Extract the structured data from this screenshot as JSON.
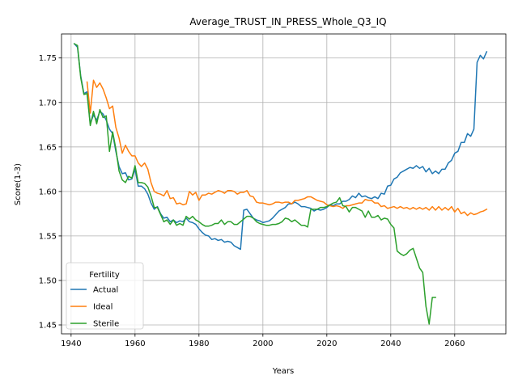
{
  "chart_data": {
    "type": "line",
    "title": "Average_TRUST_IN_PRESS_Whole_Q3_IQ",
    "xlabel": "Years",
    "ylabel": "Score(1-3)",
    "xlim": [
      1937,
      2076
    ],
    "ylim": [
      1.44,
      1.777
    ],
    "xticks": [
      1940,
      1960,
      1980,
      2000,
      2020,
      2040,
      2060
    ],
    "yticks": [
      1.45,
      1.5,
      1.55,
      1.6,
      1.65,
      1.7,
      1.75
    ],
    "grid": true,
    "legend": {
      "title": "Fertility",
      "placement": "lower-left"
    },
    "series": [
      {
        "name": "Actual",
        "color": "#1f77b4",
        "x": [
          1941,
          1942,
          1943,
          1944,
          1945,
          1946,
          1947,
          1948,
          1949,
          1950,
          1951,
          1952,
          1953,
          1954,
          1955,
          1956,
          1957,
          1958,
          1959,
          1960,
          1961,
          1962,
          1963,
          1964,
          1965,
          1966,
          1967,
          1968,
          1969,
          1970,
          1971,
          1972,
          1973,
          1974,
          1975,
          1976,
          1977,
          1978,
          1979,
          1980,
          1981,
          1982,
          1983,
          1984,
          1985,
          1986,
          1987,
          1988,
          1989,
          1990,
          1991,
          1992,
          1993,
          1994,
          1995,
          1996,
          1997,
          1998,
          1999,
          2000,
          2001,
          2002,
          2003,
          2004,
          2005,
          2006,
          2007,
          2008,
          2009,
          2010,
          2011,
          2012,
          2013,
          2014,
          2015,
          2016,
          2017,
          2018,
          2019,
          2020,
          2021,
          2022,
          2023,
          2024,
          2025,
          2026,
          2027,
          2028,
          2029,
          2030,
          2031,
          2032,
          2033,
          2034,
          2035,
          2036,
          2037,
          2038,
          2039,
          2040,
          2041,
          2042,
          2043,
          2044,
          2045,
          2046,
          2047,
          2048,
          2049,
          2050,
          2051,
          2052,
          2053,
          2054,
          2055,
          2056,
          2057,
          2058,
          2059,
          2060,
          2061,
          2062,
          2063,
          2064,
          2065,
          2066,
          2067,
          2068,
          2069,
          2070
        ],
        "values": [
          1.766,
          1.762,
          1.73,
          1.71,
          1.712,
          1.676,
          1.686,
          1.68,
          1.69,
          1.687,
          1.68,
          1.67,
          1.665,
          1.645,
          1.628,
          1.62,
          1.621,
          1.613,
          1.614,
          1.625,
          1.606,
          1.606,
          1.603,
          1.597,
          1.587,
          1.58,
          1.583,
          1.575,
          1.57,
          1.571,
          1.566,
          1.568,
          1.565,
          1.567,
          1.566,
          1.57,
          1.566,
          1.565,
          1.563,
          1.558,
          1.554,
          1.551,
          1.55,
          1.546,
          1.547,
          1.545,
          1.546,
          1.543,
          1.544,
          1.543,
          1.539,
          1.537,
          1.535,
          1.579,
          1.58,
          1.575,
          1.57,
          1.568,
          1.567,
          1.565,
          1.566,
          1.567,
          1.57,
          1.574,
          1.578,
          1.58,
          1.582,
          1.586,
          1.586,
          1.588,
          1.586,
          1.583,
          1.583,
          1.582,
          1.581,
          1.578,
          1.58,
          1.579,
          1.58,
          1.582,
          1.585,
          1.584,
          1.586,
          1.586,
          1.589,
          1.589,
          1.591,
          1.595,
          1.593,
          1.598,
          1.594,
          1.595,
          1.593,
          1.592,
          1.594,
          1.592,
          1.598,
          1.597,
          1.606,
          1.607,
          1.614,
          1.616,
          1.621,
          1.623,
          1.625,
          1.627,
          1.626,
          1.629,
          1.626,
          1.628,
          1.622,
          1.626,
          1.62,
          1.623,
          1.62,
          1.625,
          1.625,
          1.632,
          1.635,
          1.643,
          1.645,
          1.655,
          1.655,
          1.665,
          1.662,
          1.67,
          1.745,
          1.753,
          1.749,
          1.757
        ]
      },
      {
        "name": "Ideal",
        "color": "#ff7f0e",
        "x": [
          1945,
          1946,
          1947,
          1948,
          1949,
          1950,
          1951,
          1952,
          1953,
          1954,
          1955,
          1956,
          1957,
          1958,
          1959,
          1960,
          1961,
          1962,
          1963,
          1964,
          1965,
          1966,
          1967,
          1968,
          1969,
          1970,
          1971,
          1972,
          1973,
          1974,
          1975,
          1976,
          1977,
          1978,
          1979,
          1980,
          1981,
          1982,
          1983,
          1984,
          1985,
          1986,
          1987,
          1988,
          1989,
          1990,
          1991,
          1992,
          1993,
          1994,
          1995,
          1996,
          1997,
          1998,
          1999,
          2000,
          2001,
          2002,
          2003,
          2004,
          2005,
          2006,
          2007,
          2008,
          2009,
          2010,
          2011,
          2012,
          2013,
          2014,
          2015,
          2016,
          2017,
          2018,
          2019,
          2020,
          2021,
          2022,
          2023,
          2024,
          2025,
          2026,
          2027,
          2028,
          2029,
          2030,
          2031,
          2032,
          2033,
          2034,
          2035,
          2036,
          2037,
          2038,
          2039,
          2040,
          2041,
          2042,
          2043,
          2044,
          2045,
          2046,
          2047,
          2048,
          2049,
          2050,
          2051,
          2052,
          2053,
          2054,
          2055,
          2056,
          2057,
          2058,
          2059,
          2060,
          2061,
          2062,
          2063,
          2064,
          2065,
          2066,
          2067,
          2068,
          2069,
          2070
        ],
        "values": [
          1.723,
          1.688,
          1.725,
          1.717,
          1.722,
          1.715,
          1.705,
          1.693,
          1.696,
          1.672,
          1.66,
          1.643,
          1.652,
          1.645,
          1.64,
          1.64,
          1.632,
          1.628,
          1.632,
          1.625,
          1.61,
          1.6,
          1.598,
          1.597,
          1.595,
          1.601,
          1.592,
          1.593,
          1.586,
          1.587,
          1.585,
          1.586,
          1.6,
          1.596,
          1.599,
          1.59,
          1.596,
          1.596,
          1.598,
          1.597,
          1.599,
          1.601,
          1.6,
          1.598,
          1.601,
          1.601,
          1.6,
          1.597,
          1.599,
          1.599,
          1.601,
          1.595,
          1.594,
          1.588,
          1.587,
          1.587,
          1.586,
          1.585,
          1.586,
          1.588,
          1.588,
          1.587,
          1.588,
          1.588,
          1.586,
          1.59,
          1.59,
          1.591,
          1.592,
          1.594,
          1.594,
          1.592,
          1.59,
          1.589,
          1.588,
          1.585,
          1.584,
          1.583,
          1.584,
          1.583,
          1.581,
          1.584,
          1.584,
          1.585,
          1.586,
          1.587,
          1.587,
          1.591,
          1.59,
          1.59,
          1.587,
          1.587,
          1.583,
          1.584,
          1.581,
          1.582,
          1.583,
          1.581,
          1.583,
          1.581,
          1.582,
          1.58,
          1.582,
          1.58,
          1.582,
          1.58,
          1.582,
          1.579,
          1.583,
          1.579,
          1.583,
          1.579,
          1.582,
          1.579,
          1.583,
          1.577,
          1.581,
          1.575,
          1.577,
          1.573,
          1.576,
          1.574,
          1.575,
          1.577,
          1.578,
          1.58
        ]
      },
      {
        "name": "Sterile",
        "color": "#2ca02c",
        "x": [
          1941,
          1942,
          1943,
          1944,
          1945,
          1946,
          1947,
          1948,
          1949,
          1950,
          1951,
          1952,
          1953,
          1954,
          1955,
          1956,
          1957,
          1958,
          1959,
          1960,
          1961,
          1962,
          1963,
          1964,
          1965,
          1966,
          1967,
          1968,
          1969,
          1970,
          1971,
          1972,
          1973,
          1974,
          1975,
          1976,
          1977,
          1978,
          1979,
          1980,
          1981,
          1982,
          1983,
          1984,
          1985,
          1986,
          1987,
          1988,
          1989,
          1990,
          1991,
          1992,
          1993,
          1994,
          1995,
          1996,
          1997,
          1998,
          1999,
          2000,
          2001,
          2002,
          2003,
          2004,
          2005,
          2006,
          2007,
          2008,
          2009,
          2010,
          2011,
          2012,
          2013,
          2014,
          2015,
          2016,
          2017,
          2018,
          2019,
          2020,
          2021,
          2022,
          2023,
          2024,
          2025,
          2026,
          2027,
          2028,
          2029,
          2030,
          2031,
          2032,
          2033,
          2034,
          2035,
          2036,
          2037,
          2038,
          2039,
          2040,
          2041,
          2042,
          2043,
          2044,
          2045,
          2046,
          2047,
          2048,
          2049,
          2050,
          2051,
          2052,
          2053,
          2054
        ],
        "values": [
          1.766,
          1.764,
          1.728,
          1.709,
          1.71,
          1.674,
          1.69,
          1.676,
          1.692,
          1.683,
          1.685,
          1.645,
          1.667,
          1.648,
          1.623,
          1.613,
          1.61,
          1.617,
          1.615,
          1.629,
          1.61,
          1.61,
          1.609,
          1.605,
          1.595,
          1.582,
          1.582,
          1.574,
          1.566,
          1.568,
          1.563,
          1.568,
          1.562,
          1.564,
          1.562,
          1.572,
          1.569,
          1.572,
          1.568,
          1.566,
          1.563,
          1.561,
          1.561,
          1.562,
          1.564,
          1.564,
          1.568,
          1.563,
          1.566,
          1.566,
          1.563,
          1.563,
          1.566,
          1.569,
          1.572,
          1.572,
          1.57,
          1.566,
          1.564,
          1.563,
          1.562,
          1.562,
          1.563,
          1.563,
          1.564,
          1.566,
          1.57,
          1.569,
          1.566,
          1.568,
          1.565,
          1.562,
          1.562,
          1.56,
          1.58,
          1.58,
          1.58,
          1.582,
          1.582,
          1.583,
          1.585,
          1.587,
          1.588,
          1.593,
          1.584,
          1.583,
          1.577,
          1.582,
          1.582,
          1.58,
          1.578,
          1.571,
          1.578,
          1.571,
          1.571,
          1.573,
          1.568,
          1.57,
          1.569,
          1.563,
          1.559,
          1.533,
          1.53,
          1.528,
          1.53,
          1.534,
          1.536,
          1.525,
          1.514,
          1.509,
          1.471,
          1.451,
          1.481,
          1.481
        ]
      }
    ]
  }
}
